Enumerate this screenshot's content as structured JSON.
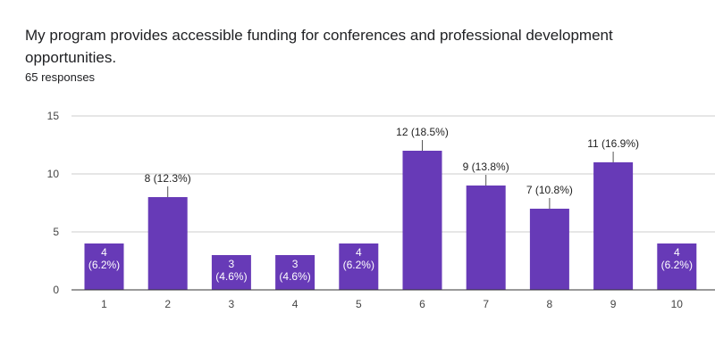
{
  "title": "My program provides accessible funding for conferences and professional development opportunities.",
  "subtitle": "65 responses",
  "colors": {
    "bar": "#673ab7",
    "grid": "#cccccc",
    "axis": "#333333"
  },
  "chart_data": {
    "type": "bar",
    "categories": [
      "1",
      "2",
      "3",
      "4",
      "5",
      "6",
      "7",
      "8",
      "9",
      "10"
    ],
    "values": [
      4,
      8,
      3,
      3,
      4,
      12,
      9,
      7,
      11,
      4
    ],
    "data_labels": [
      "4 (6.2%)",
      "8 (12.3%)",
      "3 (4.6%)",
      "3 (4.6%)",
      "4 (6.2%)",
      "12 (18.5%)",
      "9 (13.8%)",
      "7 (10.8%)",
      "11 (16.9%)",
      "4 (6.2%)"
    ],
    "yticks": [
      0,
      5,
      10,
      15
    ],
    "ylim": [
      0,
      15
    ],
    "grid": true,
    "xlabel": "",
    "ylabel": ""
  }
}
